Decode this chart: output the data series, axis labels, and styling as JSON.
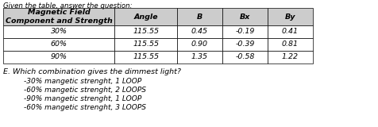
{
  "title": "Given the table, answer the question:",
  "col_headers": [
    "Magnetic Field\nComponent and Strength",
    "Angle",
    "B",
    "Bx",
    "By"
  ],
  "rows": [
    [
      "30%",
      "115.55",
      "0.45",
      "-0.19",
      "0.41"
    ],
    [
      "60%",
      "115.55",
      "0.90",
      "-0.39",
      "0.81"
    ],
    [
      "90%",
      "115.55",
      "1.35",
      "-0.58",
      "1.22"
    ]
  ],
  "question": "E. Which combination gives the dimmest light?",
  "options": [
    "-30% mangetic strenght, 1 LOOP",
    "-60% mangetic strenght, 2 LOOPS",
    "-90% mangetic strenght, 1 LOOP",
    "-60% mangetic strenght, 3 LOOPS"
  ],
  "col_props": [
    0.295,
    0.165,
    0.12,
    0.12,
    0.12
  ],
  "header_bg": "#cccccc",
  "row_bg": "#ffffff",
  "title_fontsize": 6.2,
  "header_fontsize": 6.8,
  "cell_fontsize": 6.8,
  "question_fontsize": 6.8,
  "option_fontsize": 6.5
}
